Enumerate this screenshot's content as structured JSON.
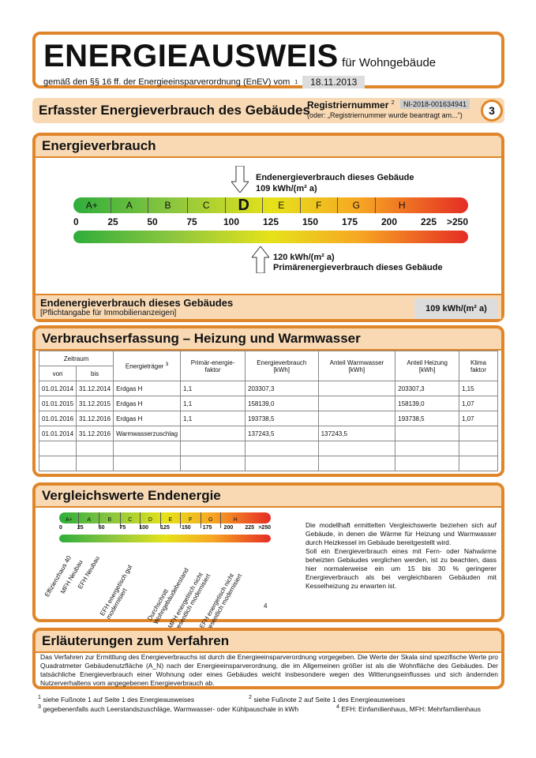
{
  "header": {
    "title": "ENERGIEAUSWEIS",
    "subtitle": "für Wohngebäude",
    "legal": "gemäß den §§ 16 ff. der Energieeinsparverordnung (EnEV) vom",
    "legal_sup": "1",
    "date": "18.11.2013"
  },
  "registry": {
    "heading": "Erfasster Energieverbrauch des Gebäudes",
    "label": "Registriernummer",
    "label_sup": "2",
    "number": "NI-2018-001634941",
    "note": "(oder: „Registriernummer wurde beantragt am...\")",
    "page": "3"
  },
  "energy": {
    "heading": "Energieverbrauch",
    "classes": [
      "A+",
      "A",
      "B",
      "C",
      "D",
      "E",
      "F",
      "G",
      "H"
    ],
    "ticks": [
      "0",
      "25",
      "50",
      "75",
      "100",
      "125",
      "150",
      "175",
      "200",
      "225",
      ">250"
    ],
    "end_label": "Endenergieverbrauch dieses Gebäude",
    "end_value": "109 kWh/(m² a)",
    "end_value_num": 109,
    "prim_value": "120 kWh/(m² a)",
    "prim_label": "Primärenergieverbrauch dieses Gebäude",
    "prim_value_num": 120,
    "foot_l1": "Endenergieverbrauch dieses Gebäudes",
    "foot_l2": "[Pflichtangabe für Immobilienanzeigen]",
    "foot_val": "109 kWh/(m² a)"
  },
  "consumption": {
    "heading": "Verbrauchserfassung – Heizung und Warmwasser",
    "h_zeitraum": "Zeitraum",
    "h_von": "von",
    "h_bis": "bis",
    "h_traeger": "Energieträger",
    "h_traeger_sup": "3",
    "h_prim": "Primär-energie-faktor",
    "h_verbrauch": "Energieverbrauch [kWh]",
    "h_anteil": "Anteil Warmwasser [kWh]",
    "h_heizung": "Anteil Heizung [kWh]",
    "h_klima": "Klima faktor",
    "rows": [
      [
        "01.01.2014",
        "31.12.2014",
        "Erdgas H",
        "1,1",
        "203307,3",
        "",
        "203307,3",
        "1,15"
      ],
      [
        "01.01.2015",
        "31.12.2015",
        "Erdgas H",
        "1,1",
        "158139,0",
        "",
        "158139,0",
        "1,07"
      ],
      [
        "01.01.2016",
        "31.12.2016",
        "Erdgas H",
        "1,1",
        "193738,5",
        "",
        "193738,5",
        "1,07"
      ],
      [
        "01.01.2014",
        "31.12.2016",
        "Warmwasserzuschlag",
        "",
        "137243,5",
        "137243,5",
        "",
        ""
      ],
      [
        "",
        "",
        "",
        "",
        "",
        "",
        "",
        ""
      ],
      [
        "",
        "",
        "",
        "",
        "",
        "",
        "",
        ""
      ]
    ]
  },
  "comparison": {
    "heading": "Vergleichswerte Endenergie",
    "classes": [
      "A+",
      "A",
      "B",
      "C",
      "D",
      "E",
      "F",
      "G",
      "H"
    ],
    "ticks": [
      "0",
      "25",
      "50",
      "75",
      "100",
      "125",
      "150",
      "175",
      "200",
      "225",
      ">250"
    ],
    "refs": [
      "Effizienzhaus 40",
      "MFH Neubau",
      "EFH Neubau",
      "EFH energetisch gut modernisiert",
      "Durchschnitt Wohngebäudebestand",
      "MFH energetisch nicht wesentlich modernisiert",
      "EFH energetisch nicht wesentlich modernisiert"
    ],
    "note": "4",
    "text": "Die modellhaft ermittelten Vergleichswerte beziehen sich auf Gebäude, in denen die Wärme für Heizung und Warmwasser durch Heizkessel im Gebäude bereitgestellt wird.",
    "text2": "Soll ein Energieverbrauch eines mit Fern- oder Nahwärme beheizten Gebäudes verglichen werden, ist zu beachten, dass hier normalerweise ein um 15 bis 30 % geringerer Energieverbrauch als bei vergleichbaren Gebäuden mit Kesselheizung zu erwarten ist."
  },
  "explain": {
    "heading": "Erläuterungen zum Verfahren",
    "text": "Das Verfahren zur Ermittlung des Energieverbrauchs ist durch die Energieeinsparverordnung vorgegeben. Die Werte der Skala sind spezifische Werte pro Quadratmeter Gebäudenutzfläche (A_N) nach der Energieeinsparverordnung, die im Allgemeinen größer ist als die Wohnfläche des Gebäudes. Der tatsächliche Energieverbrauch einer Wohnung oder eines Gebäudes weicht insbesondere wegen des Witterungseinflusses und sich ändernden Nutzerverhaltens vom angegebenen Energieverbrauch ab."
  },
  "footnotes": {
    "f1": "siehe Fußnote 1 auf Seite 1 des Energieausweises",
    "f2": "siehe Fußnote 2 auf Seite 1 des Energieausweises",
    "f3": "gegebenenfalls auch Leerstandszuschläge, Warmwasser- oder Kühlpauschale in kWh",
    "f4": "EFH: Einfamilienhaus, MFH: Mehrfamilienhaus",
    "n1": "1",
    "n2": "2",
    "n3": "3",
    "n4": "4"
  }
}
